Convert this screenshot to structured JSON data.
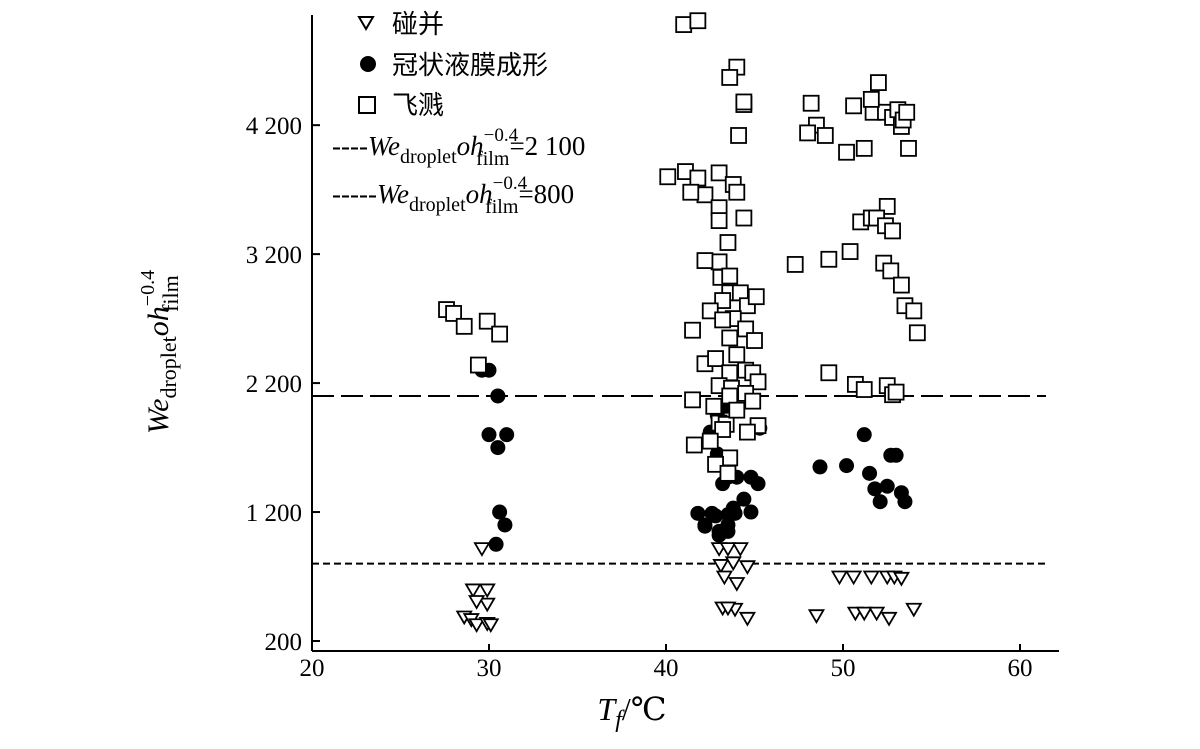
{
  "chart_data": {
    "type": "scatter",
    "xlabel": {
      "var": "T",
      "sub": "f",
      "unit": "/℃"
    },
    "ylabel": {
      "p1": "We",
      "s1": "droplet",
      "p2": "oh",
      "s2": "film",
      "sup": "−0.4"
    },
    "xlim": [
      20,
      60
    ],
    "ylim": [
      200,
      5000
    ],
    "xticks": [
      20,
      30,
      40,
      50,
      60
    ],
    "xtick_labels": [
      "20",
      "30",
      "40",
      "50",
      "60"
    ],
    "yticks": [
      200,
      1200,
      2200,
      3200,
      4200
    ],
    "ytick_labels": [
      "200",
      "1 200",
      "2 200",
      "3 200",
      "4 200"
    ],
    "legend_position": "top-left",
    "series": [
      {
        "name": "碰并",
        "marker": "triangle-down-open",
        "color": "#000000",
        "x": [
          28.6,
          29.0,
          29.3,
          29.9,
          29.9,
          29.6,
          29.1,
          29.3,
          29.9,
          30.1,
          43.0,
          43.5,
          44.2,
          43.1,
          43.8,
          43.3,
          44.0,
          44.6,
          43.2,
          43.9,
          43.5,
          44.6,
          48.5,
          49.8,
          50.6,
          51.6,
          52.5,
          52.9,
          53.3,
          54.0,
          50.7,
          51.2,
          51.9,
          52.6
        ],
        "y": [
          390,
          370,
          330,
          340,
          490,
          920,
          600,
          510,
          600,
          330,
          920,
          920,
          920,
          790,
          810,
          700,
          650,
          780,
          460,
          450,
          460,
          380,
          400,
          700,
          700,
          700,
          700,
          700,
          690,
          450,
          420,
          420,
          420,
          380
        ]
      },
      {
        "name": "冠状液膜成形",
        "marker": "circle-filled",
        "color": "#000000",
        "x": [
          29.6,
          30.0,
          30.5,
          30.0,
          30.5,
          31.0,
          30.6,
          30.9,
          30.4,
          41.8,
          42.2,
          42.6,
          42.2,
          42.8,
          43.5,
          43.0,
          43.5,
          43.9,
          44.4,
          44.8,
          45.2,
          43.2,
          42.5,
          42.9,
          43.5,
          44.0,
          44.8,
          43.5,
          43.0,
          43.8,
          42.9,
          43.4,
          45.3,
          48.7,
          50.2,
          51.2,
          51.8,
          52.1,
          52.7,
          53.0,
          53.5,
          51.5,
          52.5,
          53.3
        ],
        "y": [
          2300,
          2300,
          2100,
          1800,
          1700,
          1800,
          1200,
          1100,
          950,
          1190,
          1090,
          1190,
          1100,
          1170,
          1100,
          1050,
          1050,
          1190,
          1300,
          1200,
          1420,
          1420,
          1820,
          1650,
          1470,
          1470,
          1470,
          1180,
          1020,
          1230,
          1950,
          2020,
          1850,
          1550,
          1560,
          1800,
          1380,
          1280,
          1640,
          1640,
          1280,
          1500,
          1400,
          1350
        ]
      },
      {
        "name": "飞溅",
        "marker": "square-open",
        "color": "#000000",
        "x": [
          27.6,
          28.0,
          28.6,
          29.9,
          30.6,
          29.4,
          41.0,
          41.8,
          44.0,
          43.6,
          44.4,
          44.4,
          44.1,
          40.1,
          41.1,
          43.0,
          41.8,
          42.2,
          43.8,
          41.4,
          44.0,
          43.0,
          43.0,
          44.4,
          43.5,
          43.0,
          42.2,
          43.1,
          43.6,
          43.6,
          44.2,
          44.6,
          45.1,
          43.2,
          43.8,
          42.5,
          43.2,
          41.5,
          44.5,
          45.0,
          43.6,
          44.0,
          42.2,
          42.8,
          43.6,
          44.5,
          44.9,
          45.2,
          43.0,
          43.7,
          44.5,
          43.6,
          44.9,
          41.5,
          42.7,
          43.0,
          43.4,
          44.0,
          45.2,
          44.6,
          41.6,
          43.2,
          42.5,
          43.6,
          42.8,
          43.5,
          48.5,
          48.0,
          49.0,
          50.2,
          51.2,
          51.7,
          52.0,
          52.4,
          52.8,
          53.3,
          53.7,
          52.5,
          51.0,
          51.6,
          51.9,
          52.4,
          52.8,
          47.3,
          49.2,
          50.4,
          52.3,
          52.7,
          53.3,
          53.5,
          54.0,
          54.2,
          49.2,
          50.7,
          51.2,
          52.5,
          52.8,
          53.0,
          48.2,
          50.6,
          51.6,
          53.1,
          53.4,
          53.6
        ],
        "y": [
          2770,
          2740,
          2640,
          2680,
          2580,
          2340,
          4980,
          5010,
          4650,
          4570,
          4360,
          4380,
          4120,
          3800,
          3840,
          3830,
          3790,
          3660,
          3740,
          3680,
          3680,
          3560,
          3460,
          3480,
          3290,
          3140,
          3150,
          3020,
          3030,
          2900,
          2900,
          2800,
          2870,
          2840,
          2700,
          2760,
          2690,
          2610,
          2620,
          2530,
          2550,
          2420,
          2350,
          2390,
          2280,
          2300,
          2280,
          2210,
          2180,
          2160,
          2120,
          2100,
          2060,
          2070,
          2020,
          1890,
          1880,
          1990,
          1870,
          1820,
          1720,
          1840,
          1750,
          1620,
          1570,
          1500,
          4200,
          4140,
          4120,
          3990,
          4020,
          4300,
          4530,
          4300,
          4260,
          4190,
          4020,
          3570,
          3450,
          3480,
          3480,
          3420,
          3380,
          3120,
          3160,
          3220,
          3130,
          3070,
          2960,
          2800,
          2760,
          2590,
          2280,
          2190,
          2150,
          2180,
          2110,
          2130,
          4370,
          4350,
          4400,
          4320,
          4240,
          4300
        ],
        "__note": "placeholder"
      }
    ],
    "reference_lines": [
      {
        "style": "long-dash",
        "y": 2100,
        "label_prefix": "----",
        "lhs": {
          "p1": "We",
          "s1": "droplet",
          "p2": "oh",
          "s2": "film",
          "sup": "−0.4"
        },
        "rhs": "=2 100"
      },
      {
        "style": "short-dash",
        "y": 800,
        "label_prefix": "-----",
        "lhs": {
          "p1": "We",
          "s1": "droplet",
          "p2": "oh",
          "s2": "film",
          "sup": "−0.4"
        },
        "rhs": "=800"
      }
    ]
  }
}
